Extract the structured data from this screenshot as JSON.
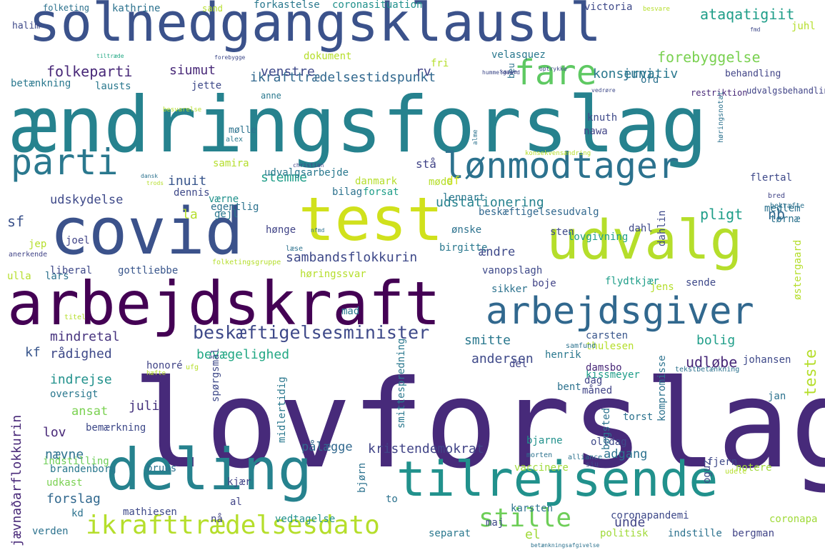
{
  "words": [
    {
      "text": "lovforslag",
      "color": "#472a7a"
    },
    {
      "text": "ændringsforslag",
      "color": "#26828e"
    },
    {
      "text": "solnedgangsklausul",
      "color": "#3b528b"
    },
    {
      "text": "arbejdskraft",
      "color": "#440154"
    },
    {
      "text": "covid",
      "color": "#3b528b"
    },
    {
      "text": "test",
      "color": "#d0e11c"
    },
    {
      "text": "udvalg",
      "color": "#b5de2b"
    },
    {
      "text": "deling",
      "color": "#26828e"
    },
    {
      "text": "tilrejsende",
      "color": "#21918c"
    },
    {
      "text": "arbejdsgiver",
      "color": "#31688e"
    },
    {
      "text": "parti",
      "color": "#2a788e"
    },
    {
      "text": "lønmodtager",
      "color": "#2c728e"
    },
    {
      "text": "fare",
      "color": "#5ec962"
    },
    {
      "text": "ikrafttrædelsesdato",
      "color": "#b5de2b"
    },
    {
      "text": "stille",
      "color": "#6ece58"
    },
    {
      "text": "beskæftigelsesminister",
      "color": "#3e4989"
    },
    {
      "text": "ikrafttrædelsestidspunkt",
      "color": "#31688e"
    },
    {
      "text": "folkeparti",
      "color": "#482878"
    },
    {
      "text": "siumut",
      "color": "#482878"
    },
    {
      "text": "venstre",
      "color": "#3e4989"
    },
    {
      "text": "rv",
      "color": "#414487"
    },
    {
      "text": "juni",
      "color": "#2c728e"
    },
    {
      "text": "konservativ",
      "color": "#2a788e"
    },
    {
      "text": "forebyggelse",
      "color": "#7ad151"
    },
    {
      "text": "ataqatigiit",
      "color": "#1f9e89"
    },
    {
      "text": "udstationering",
      "color": "#26828e"
    },
    {
      "text": "pligt",
      "color": "#1f9e89"
    },
    {
      "text": "nb",
      "color": "#31688e"
    },
    {
      "text": "inuit",
      "color": "#39568c"
    },
    {
      "text": "stemme",
      "color": "#1f9e89"
    },
    {
      "text": "udskydelse",
      "color": "#3e4989"
    },
    {
      "text": "sambandsflokkurin",
      "color": "#3e4989"
    },
    {
      "text": "mindretal",
      "color": "#46337e"
    },
    {
      "text": "smitte",
      "color": "#2a788e"
    },
    {
      "text": "bolig",
      "color": "#1f9e89"
    },
    {
      "text": "udløbe",
      "color": "#482878"
    },
    {
      "text": "rådighed",
      "color": "#3e4989"
    },
    {
      "text": "bevægelighed",
      "color": "#22a884"
    },
    {
      "text": "andersen",
      "color": "#3e4989"
    },
    {
      "text": "indrejse",
      "color": "#21918c"
    },
    {
      "text": "juli",
      "color": "#46337e"
    },
    {
      "text": "ansat",
      "color": "#7ad151"
    },
    {
      "text": "lov",
      "color": "#482878"
    },
    {
      "text": "nævne",
      "color": "#2c728e"
    },
    {
      "text": "pålægge",
      "color": "#31688e"
    },
    {
      "text": "kristendemokrat",
      "color": "#414487"
    },
    {
      "text": "adgang",
      "color": "#2c728e"
    },
    {
      "text": "forslag",
      "color": "#31688e"
    },
    {
      "text": "unde",
      "color": "#414487"
    },
    {
      "text": "el",
      "color": "#a0da39"
    },
    {
      "text": "teste",
      "color": "#b5de2b"
    },
    {
      "text": "jævnaðarflokkurin",
      "color": "#482878"
    },
    {
      "text": "df",
      "color": "#d0e11c"
    },
    {
      "text": "ændre",
      "color": "#3e4989"
    },
    {
      "text": "sf",
      "color": "#3b528b"
    },
    {
      "text": "kf",
      "color": "#39568c"
    },
    {
      "text": "la",
      "color": "#b5de2b"
    },
    {
      "text": "stå",
      "color": "#414487"
    },
    {
      "text": "egentlig",
      "color": "#2c728e"
    },
    {
      "text": "samira",
      "color": "#b5de2b"
    },
    {
      "text": "udvalgsarbejde",
      "color": "#2a788e"
    },
    {
      "text": "dennis",
      "color": "#3e4989"
    },
    {
      "text": "bilag",
      "color": "#2c728e"
    },
    {
      "text": "forsat",
      "color": "#1f9e89"
    },
    {
      "text": "lennart",
      "color": "#2a788e"
    },
    {
      "text": "beskæftigelsesudvalg",
      "color": "#31688e"
    },
    {
      "text": "medlem",
      "color": "#2c728e"
    },
    {
      "text": "tørnæ",
      "color": "#2c728e"
    },
    {
      "text": "liberal",
      "color": "#3e4989"
    },
    {
      "text": "gottliebbe",
      "color": "#39568c"
    },
    {
      "text": "høringssvar",
      "color": "#b5de2b"
    },
    {
      "text": "vanopslagh",
      "color": "#3e4989"
    },
    {
      "text": "boje",
      "color": "#414487"
    },
    {
      "text": "flydtkjær",
      "color": "#1f9e89"
    },
    {
      "text": "sende",
      "color": "#3e4989"
    },
    {
      "text": "jens",
      "color": "#b5de2b"
    },
    {
      "text": "mad",
      "color": "#2a788e"
    },
    {
      "text": "sikker",
      "color": "#2c728e"
    },
    {
      "text": "carsten",
      "color": "#39568c"
    },
    {
      "text": "thulesen",
      "color": "#b5de2b"
    },
    {
      "text": "kissmeyer",
      "color": "#1f9e89"
    },
    {
      "text": "henrik",
      "color": "#2a788e"
    },
    {
      "text": "damsbo",
      "color": "#482878"
    },
    {
      "text": "johansen",
      "color": "#3e4989"
    },
    {
      "text": "bent",
      "color": "#2c728e"
    },
    {
      "text": "måned",
      "color": "#414487"
    },
    {
      "text": "bjarne",
      "color": "#21918c"
    },
    {
      "text": "bemærkning",
      "color": "#3e4989"
    },
    {
      "text": "indstilling",
      "color": "#6ece58"
    },
    {
      "text": "bruus",
      "color": "#2c728e"
    },
    {
      "text": "brandenborg",
      "color": "#2a788e"
    },
    {
      "text": "udkast",
      "color": "#7ad151"
    },
    {
      "text": "kjær",
      "color": "#414487"
    },
    {
      "text": "vaccinere",
      "color": "#a0da39"
    },
    {
      "text": "fjern",
      "color": "#3e4989"
    },
    {
      "text": "notere",
      "color": "#a0da39"
    },
    {
      "text": "olldag",
      "color": "#3e4989"
    },
    {
      "text": "torst",
      "color": "#2c728e"
    },
    {
      "text": "karsten",
      "color": "#2c728e"
    },
    {
      "text": "coronapandemi",
      "color": "#3e4989"
    },
    {
      "text": "mathiesen",
      "color": "#3e4989"
    },
    {
      "text": "vedtagelse",
      "color": "#21918c"
    },
    {
      "text": "nå",
      "color": "#414487"
    },
    {
      "text": "maj",
      "color": "#3e4989"
    },
    {
      "text": "separat",
      "color": "#2a788e"
    },
    {
      "text": "politisk",
      "color": "#a0da39"
    },
    {
      "text": "indstille",
      "color": "#2c728e"
    },
    {
      "text": "bergman",
      "color": "#414487"
    },
    {
      "text": "coronapa",
      "color": "#a0da39"
    },
    {
      "text": "verden",
      "color": "#2c728e"
    },
    {
      "text": "kd",
      "color": "#2c728e"
    },
    {
      "text": "to",
      "color": "#2c728e"
    },
    {
      "text": "oversigt",
      "color": "#2a788e"
    },
    {
      "text": "honoré",
      "color": "#414487"
    },
    {
      "text": "møde",
      "color": "#b5de2b"
    },
    {
      "text": "danmark",
      "color": "#b5de2b"
    },
    {
      "text": "knuth",
      "color": "#3e4989"
    },
    {
      "text": "nawa",
      "color": "#414487"
    },
    {
      "text": "flertal",
      "color": "#3e4989"
    },
    {
      "text": "alex",
      "color": "#2a788e"
    },
    {
      "text": "mølle",
      "color": "#2c728e"
    },
    {
      "text": "halim",
      "color": "#3e4989"
    },
    {
      "text": "folketing",
      "color": "#2c728e"
    },
    {
      "text": "kathrine",
      "color": "#2c728e"
    },
    {
      "text": "sand",
      "color": "#b5de2b"
    },
    {
      "text": "forkastelse",
      "color": "#2a788e"
    },
    {
      "text": "coronasituation",
      "color": "#21918c"
    },
    {
      "text": "victoria",
      "color": "#3e4989"
    },
    {
      "text": "besvare",
      "color": "#b5de2b"
    },
    {
      "text": "behandling",
      "color": "#414487"
    },
    {
      "text": "juhl",
      "color": "#b5de2b"
    },
    {
      "text": "dokument",
      "color": "#b5de2b"
    },
    {
      "text": "fri",
      "color": "#b5de2b"
    },
    {
      "text": "velasquez",
      "color": "#2a788e"
    },
    {
      "text": "betænkning",
      "color": "#2a788e"
    },
    {
      "text": "lausts",
      "color": "#2a788e"
    },
    {
      "text": "jette",
      "color": "#3e4989"
    },
    {
      "text": "ord",
      "color": "#2c728e"
    },
    {
      "text": "restriktion",
      "color": "#482878"
    },
    {
      "text": "udvalgsbehandling",
      "color": "#414487"
    },
    {
      "text": "beu",
      "color": "#2c728e"
    },
    {
      "text": "anne",
      "color": "#2a788e"
    },
    {
      "text": "vedrøre",
      "color": "#3e4989"
    },
    {
      "text": "tiltræde",
      "color": "#22a884"
    },
    {
      "text": "forebygge",
      "color": "#3e4989"
    },
    {
      "text": "hummelgaard",
      "color": "#3e4989"
    },
    {
      "text": "optrykke",
      "color": "#3e4989"
    },
    {
      "text": "kaspe",
      "color": "#3e4989"
    },
    {
      "text": "fmd",
      "color": "#3e4989"
    },
    {
      "text": "christian",
      "color": "#414487"
    },
    {
      "text": "dansk",
      "color": "#2c728e"
    },
    {
      "text": "trods",
      "color": "#b5de2b"
    },
    {
      "text": "besvarelse",
      "color": "#b5de2b"
    },
    {
      "text": "konsekvensændring",
      "color": "#b5de2b"
    },
    {
      "text": "alme",
      "color": "#2c728e"
    },
    {
      "text": "høringsnotat",
      "color": "#2c728e"
    },
    {
      "text": "gejl",
      "color": "#2a788e"
    },
    {
      "text": "værne",
      "color": "#21918c"
    },
    {
      "text": "sten",
      "color": "#3e4989"
    },
    {
      "text": "ønske",
      "color": "#2c728e"
    },
    {
      "text": "lovgivning",
      "color": "#1f9e89"
    },
    {
      "text": "hønge",
      "color": "#414487"
    },
    {
      "text": "birgitte",
      "color": "#2a788e"
    },
    {
      "text": "dahl",
      "color": "#3e4989"
    },
    {
      "text": "dahlin",
      "color": "#3e4989"
    },
    {
      "text": "østergaard",
      "color": "#b5de2b"
    },
    {
      "text": "jep",
      "color": "#b5de2b"
    },
    {
      "text": "joel",
      "color": "#414487"
    },
    {
      "text": "anerkende",
      "color": "#414487"
    },
    {
      "text": "ulla",
      "color": "#b5de2b"
    },
    {
      "text": "lars",
      "color": "#2c728e"
    },
    {
      "text": "folketingsgruppe",
      "color": "#b5de2b"
    },
    {
      "text": "læse",
      "color": "#2c728e"
    },
    {
      "text": "nfmd",
      "color": "#2c728e"
    },
    {
      "text": "bred",
      "color": "#414487"
    },
    {
      "text": "bekræfte",
      "color": "#2c728e"
    },
    {
      "text": "titel",
      "color": "#b5de2b"
    },
    {
      "text": "ufg",
      "color": "#b5de2b"
    },
    {
      "text": "samfund",
      "color": "#2c728e"
    },
    {
      "text": "spørgsmål",
      "color": "#3e4989"
    },
    {
      "text": "del",
      "color": "#414487"
    },
    {
      "text": "kompromisse",
      "color": "#2c728e"
    },
    {
      "text": "dag",
      "color": "#414487"
    },
    {
      "text": "tekstbetænkning",
      "color": "#2c728e"
    },
    {
      "text": "jan",
      "color": "#2c728e"
    },
    {
      "text": "hæfte",
      "color": "#b5de2b"
    },
    {
      "text": "midlertidig",
      "color": "#2a788e"
    },
    {
      "text": "smittespredning",
      "color": "#2a788e"
    },
    {
      "text": "bjørn",
      "color": "#2c728e"
    },
    {
      "text": "bøgsted",
      "color": "#2c728e"
    },
    {
      "text": "morten",
      "color": "#2c728e"
    },
    {
      "text": "alliance",
      "color": "#2c728e"
    },
    {
      "text": "siu",
      "color": "#3e4989"
    },
    {
      "text": "oguz",
      "color": "#3e4989"
    },
    {
      "text": "al",
      "color": "#414487"
    },
    {
      "text": "udele",
      "color": "#b5de2b"
    },
    {
      "text": "betænkningsafgivelse",
      "color": "#2c728e"
    }
  ]
}
